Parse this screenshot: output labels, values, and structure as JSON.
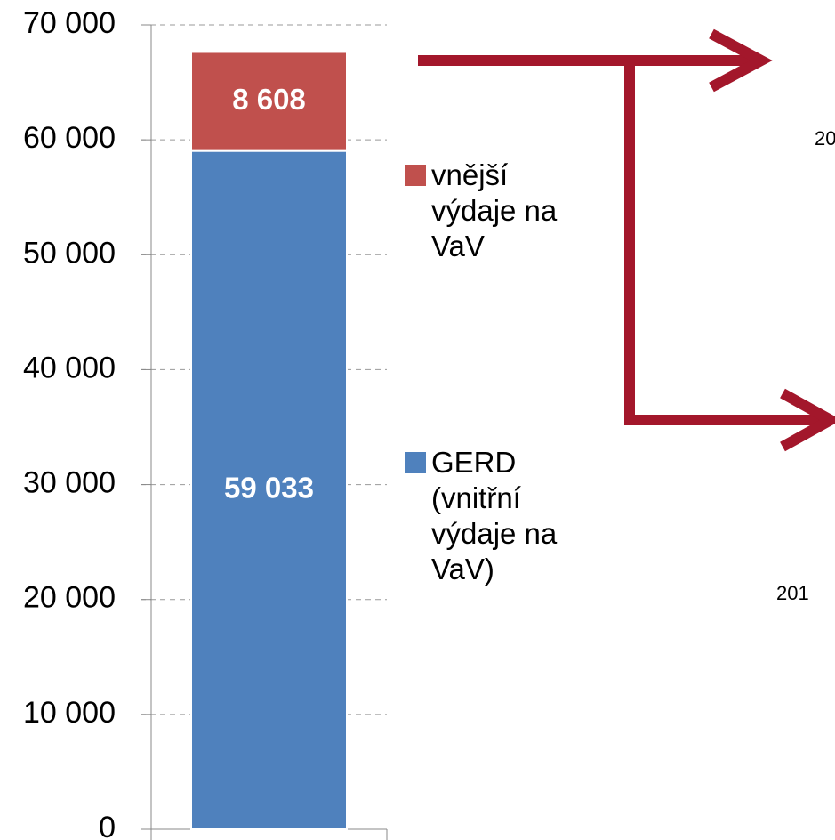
{
  "chart_data": {
    "type": "stacked_bar",
    "categories": [
      null
    ],
    "series": [
      {
        "name": "GERD (vnitřní výdaje na VaV)",
        "color": "#4f81bd",
        "values": [
          59033
        ],
        "value_labels": [
          "59 033"
        ]
      },
      {
        "name": "vnější výdaje na VaV",
        "color": "#c0504d",
        "values": [
          8608
        ],
        "value_labels": [
          "8 608"
        ]
      }
    ],
    "ylim": [
      0,
      70000
    ],
    "yticks": [
      0,
      {
        "value": 10000,
        "label": "10 000"
      },
      {
        "value": 20000,
        "label": "20 000"
      },
      {
        "value": 30000,
        "label": "30 000"
      },
      {
        "value": 40000,
        "label": "40 000"
      },
      {
        "value": 50000,
        "label": "50 000"
      },
      {
        "value": 60000,
        "label": "60 000"
      },
      {
        "value": 70000,
        "label": "70 000"
      }
    ],
    "grid": true,
    "annotations": [
      "20",
      "201"
    ]
  }
}
